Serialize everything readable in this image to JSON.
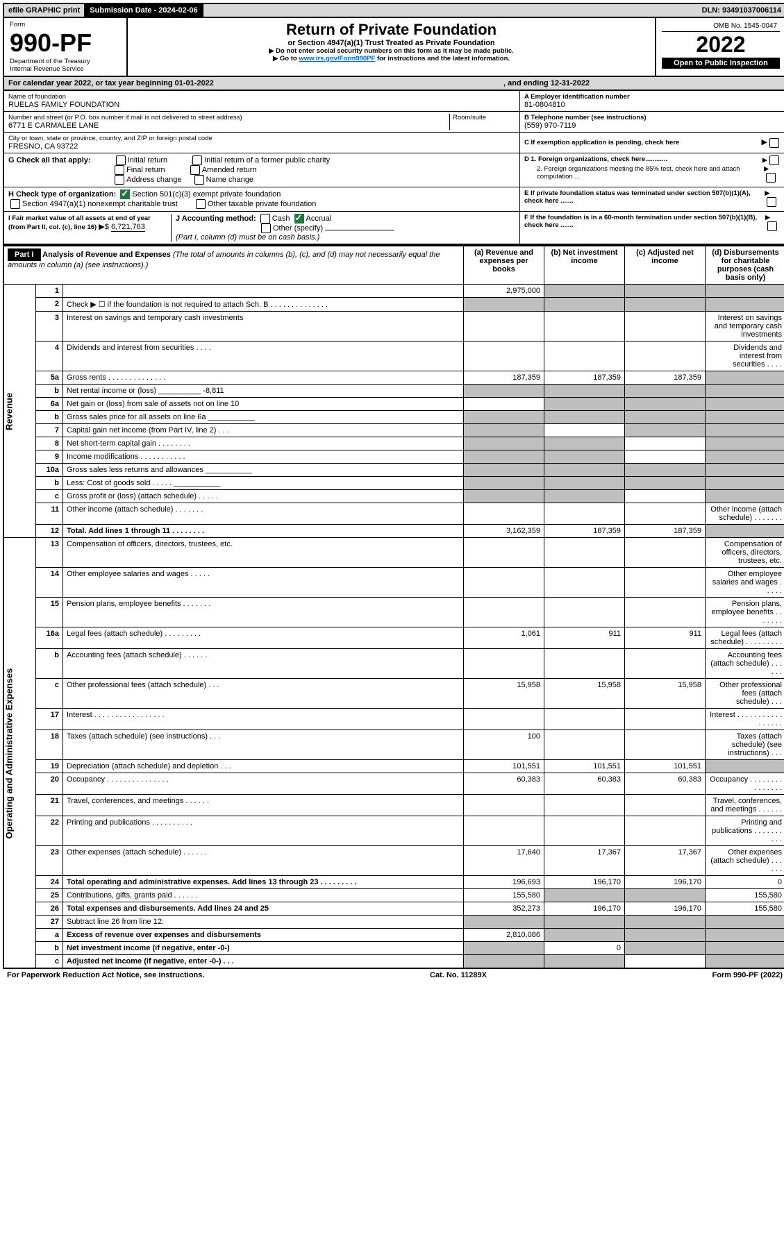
{
  "topbar": {
    "efile": "efile GRAPHIC print",
    "sub_label": "Submission Date - 2024-02-06",
    "dln": "DLN: 93491037006114"
  },
  "header": {
    "form_label": "Form",
    "form_num": "990-PF",
    "dept1": "Department of the Treasury",
    "dept2": "Internal Revenue Service",
    "title": "Return of Private Foundation",
    "subtitle": "or Section 4947(a)(1) Trust Treated as Private Foundation",
    "note1": "▶ Do not enter social security numbers on this form as it may be made public.",
    "note2_pre": "▶ Go to ",
    "note2_link": "www.irs.gov/Form990PF",
    "note2_post": " for instructions and the latest information.",
    "omb": "OMB No. 1545-0047",
    "year": "2022",
    "open": "Open to Public Inspection"
  },
  "cal": {
    "line": "For calendar year 2022, or tax year beginning 01-01-2022",
    "ending": ", and ending 12-31-2022"
  },
  "id": {
    "name_label": "Name of foundation",
    "name": "RUELAS FAMILY FOUNDATION",
    "addr_label": "Number and street (or P.O. box number if mail is not delivered to street address)",
    "room_label": "Room/suite",
    "addr": "6771 E CARMALEE LANE",
    "city_label": "City or town, state or province, country, and ZIP or foreign postal code",
    "city": "FRESNO, CA  93722",
    "a_label": "A Employer identification number",
    "a_val": "81-0804810",
    "b_label": "B Telephone number (see instructions)",
    "b_val": "(559) 970-7119",
    "c_label": "C If exemption application is pending, check here",
    "d1": "D 1. Foreign organizations, check here............",
    "d2": "2. Foreign organizations meeting the 85% test, check here and attach computation ...",
    "e": "E  If private foundation status was terminated under section 507(b)(1)(A), check here .......",
    "f": "F  If the foundation is in a 60-month termination under section 507(b)(1)(B), check here .......",
    "g_label": "G Check all that apply:",
    "g_opts": [
      "Initial return",
      "Initial return of a former public charity",
      "Final return",
      "Amended return",
      "Address change",
      "Name change"
    ],
    "h_label": "H Check type of organization:",
    "h_opts": [
      "Section 501(c)(3) exempt private foundation",
      "Section 4947(a)(1) nonexempt charitable trust",
      "Other taxable private foundation"
    ],
    "i_label": "I Fair market value of all assets at end of year (from Part II, col. (c), line 16)",
    "i_val": "6,721,763",
    "j_label": "J Accounting method:",
    "j_opts": [
      "Cash",
      "Accrual",
      "Other (specify)"
    ],
    "j_note": "(Part I, column (d) must be on cash basis.)"
  },
  "part1": {
    "label": "Part I",
    "title": "Analysis of Revenue and Expenses",
    "title_note": "(The total of amounts in columns (b), (c), and (d) may not necessarily equal the amounts in column (a) (see instructions).)",
    "cols": {
      "a": "(a)  Revenue and expenses per books",
      "b": "(b)  Net investment income",
      "c": "(c)  Adjusted net income",
      "d": "(d)  Disbursements for charitable purposes (cash basis only)"
    },
    "side_rev": "Revenue",
    "side_exp": "Operating and Administrative Expenses"
  },
  "rows": [
    {
      "n": "1",
      "d": "",
      "a": "2,975,000",
      "b": "",
      "c": "",
      "sb": true,
      "sc": true,
      "sd": true
    },
    {
      "n": "2",
      "d": "Check ▶ ☐ if the foundation is not required to attach Sch. B  . . . . . . . . . . . . . .",
      "sa": true,
      "sb": true,
      "sc": true,
      "sd": true
    },
    {
      "n": "3",
      "d": "Interest on savings and temporary cash investments"
    },
    {
      "n": "4",
      "d": "Dividends and interest from securities  . . . ."
    },
    {
      "n": "5a",
      "d": "Gross rents  . . . . . . . . . . . . . .",
      "a": "187,359",
      "b": "187,359",
      "c": "187,359",
      "sd": true
    },
    {
      "n": "b",
      "d": "Net rental income or (loss)",
      "inline": "-8,811",
      "sa": true,
      "sb": true,
      "sc": true,
      "sd": true
    },
    {
      "n": "6a",
      "d": "Net gain or (loss) from sale of assets not on line 10",
      "sb": true,
      "sc": true,
      "sd": true
    },
    {
      "n": "b",
      "d": "Gross sales price for all assets on line 6a",
      "inlineblank": true,
      "sa": true,
      "sb": true,
      "sc": true,
      "sd": true
    },
    {
      "n": "7",
      "d": "Capital gain net income (from Part IV, line 2)  . . .",
      "sa": true,
      "sc": true,
      "sd": true
    },
    {
      "n": "8",
      "d": "Net short-term capital gain  . . . . . . . .",
      "sa": true,
      "sb": true,
      "sd": true
    },
    {
      "n": "9",
      "d": "Income modifications . . . . . . . . . . .",
      "sa": true,
      "sb": true,
      "sd": true
    },
    {
      "n": "10a",
      "d": "Gross sales less returns and allowances",
      "inlineblank": true,
      "sa": true,
      "sb": true,
      "sc": true,
      "sd": true
    },
    {
      "n": "b",
      "d": "Less: Cost of goods sold   . . . . .",
      "inlineblank": true,
      "sa": true,
      "sb": true,
      "sc": true,
      "sd": true
    },
    {
      "n": "c",
      "d": "Gross profit or (loss) (attach schedule)   . . . . .",
      "sa": true,
      "sb": true,
      "sd": true
    },
    {
      "n": "11",
      "d": "Other income (attach schedule)  . . . . . . ."
    },
    {
      "n": "12",
      "d": "Total. Add lines 1 through 11  . . . . . . . .",
      "bold": true,
      "a": "3,162,359",
      "b": "187,359",
      "c": "187,359",
      "sd": true
    },
    {
      "n": "13",
      "d": "Compensation of officers, directors, trustees, etc."
    },
    {
      "n": "14",
      "d": "Other employee salaries and wages   . . . . ."
    },
    {
      "n": "15",
      "d": "Pension plans, employee benefits . . . . . . ."
    },
    {
      "n": "16a",
      "d": "Legal fees (attach schedule) . . . . . . . . .",
      "a": "1,061",
      "b": "911",
      "c": "911"
    },
    {
      "n": "b",
      "d": "Accounting fees (attach schedule) . . . . . ."
    },
    {
      "n": "c",
      "d": "Other professional fees (attach schedule)  . . .",
      "a": "15,958",
      "b": "15,958",
      "c": "15,958"
    },
    {
      "n": "17",
      "d": "Interest . . . . . . . . . . . . . . . . ."
    },
    {
      "n": "18",
      "d": "Taxes (attach schedule) (see instructions)  . . .",
      "a": "100"
    },
    {
      "n": "19",
      "d": "Depreciation (attach schedule) and depletion   . . .",
      "a": "101,551",
      "b": "101,551",
      "c": "101,551",
      "sd": true
    },
    {
      "n": "20",
      "d": "Occupancy . . . . . . . . . . . . . . .",
      "a": "60,383",
      "b": "60,383",
      "c": "60,383"
    },
    {
      "n": "21",
      "d": "Travel, conferences, and meetings . . . . . ."
    },
    {
      "n": "22",
      "d": "Printing and publications . . . . . . . . . ."
    },
    {
      "n": "23",
      "d": "Other expenses (attach schedule) . . . . . .",
      "a": "17,640",
      "b": "17,367",
      "c": "17,367"
    },
    {
      "n": "24",
      "d": "Total operating and administrative expenses. Add lines 13 through 23  . . . . . . . . .",
      "bold": true,
      "a": "196,693",
      "b": "196,170",
      "c": "196,170",
      "dval": "0"
    },
    {
      "n": "25",
      "d": "Contributions, gifts, grants paid   . . . . . .",
      "a": "155,580",
      "sb": true,
      "sc": true,
      "dval": "155,580"
    },
    {
      "n": "26",
      "d": "Total expenses and disbursements. Add lines 24 and 25",
      "bold": true,
      "a": "352,273",
      "b": "196,170",
      "c": "196,170",
      "dval": "155,580"
    },
    {
      "n": "27",
      "d": "Subtract line 26 from line 12:",
      "sa": true,
      "sb": true,
      "sc": true,
      "sd": true
    },
    {
      "n": "a",
      "d": "Excess of revenue over expenses and disbursements",
      "bold": true,
      "a": "2,810,086",
      "sb": true,
      "sc": true,
      "sd": true
    },
    {
      "n": "b",
      "d": "Net investment income (if negative, enter -0-)",
      "bold": true,
      "sa": true,
      "b": "0",
      "sc": true,
      "sd": true
    },
    {
      "n": "c",
      "d": "Adjusted net income (if negative, enter -0-)  . . .",
      "bold": true,
      "sa": true,
      "sb": true,
      "sd": true
    }
  ],
  "footer": {
    "left": "For Paperwork Reduction Act Notice, see instructions.",
    "mid": "Cat. No. 11289X",
    "right": "Form 990-PF (2022)"
  }
}
